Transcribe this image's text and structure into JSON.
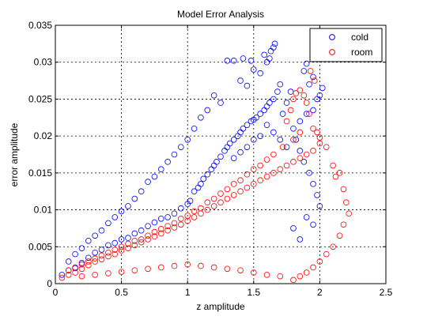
{
  "chart_data": {
    "type": "scatter",
    "title": "Model Error Analysis",
    "xlabel": "z amplitude",
    "ylabel": "error amplitude",
    "xlim": [
      0,
      2.5
    ],
    "ylim": [
      0,
      0.035
    ],
    "xticks": [
      0,
      0.5,
      1,
      1.5,
      2,
      2.5
    ],
    "xtick_labels": [
      "0",
      "0.5",
      "1",
      "1.5",
      "2",
      "2.5"
    ],
    "yticks": [
      0,
      0.005,
      0.01,
      0.015,
      0.02,
      0.025,
      0.03,
      0.035
    ],
    "ytick_labels": [
      "0",
      "0.005",
      "0.01",
      "0.015",
      "0.02",
      "0.025",
      "0.03",
      "0.035"
    ],
    "grid": true,
    "legend_position": "top-right",
    "marker": "open-circle",
    "series": [
      {
        "name": "cold",
        "color": "#0000ff",
        "points": [
          [
            0.05,
            0.0012
          ],
          [
            0.1,
            0.0018
          ],
          [
            0.15,
            0.0021
          ],
          [
            0.2,
            0.0028
          ],
          [
            0.25,
            0.0035
          ],
          [
            0.3,
            0.0042
          ],
          [
            0.35,
            0.0046
          ],
          [
            0.4,
            0.0052
          ],
          [
            0.45,
            0.0055
          ],
          [
            0.5,
            0.006
          ],
          [
            0.55,
            0.0062
          ],
          [
            0.6,
            0.0068
          ],
          [
            0.65,
            0.0072
          ],
          [
            0.7,
            0.0078
          ],
          [
            0.75,
            0.0083
          ],
          [
            0.8,
            0.0088
          ],
          [
            0.85,
            0.009
          ],
          [
            0.9,
            0.0095
          ],
          [
            0.95,
            0.0102
          ],
          [
            1.0,
            0.0108
          ],
          [
            1.02,
            0.0112
          ],
          [
            1.05,
            0.0125
          ],
          [
            1.08,
            0.013
          ],
          [
            1.1,
            0.0135
          ],
          [
            1.12,
            0.0142
          ],
          [
            1.15,
            0.0148
          ],
          [
            1.18,
            0.0155
          ],
          [
            1.2,
            0.016
          ],
          [
            1.22,
            0.0165
          ],
          [
            1.25,
            0.0172
          ],
          [
            1.28,
            0.018
          ],
          [
            1.3,
            0.0185
          ],
          [
            1.32,
            0.019
          ],
          [
            1.35,
            0.0195
          ],
          [
            1.38,
            0.02
          ],
          [
            1.4,
            0.0205
          ],
          [
            1.42,
            0.021
          ],
          [
            1.45,
            0.0215
          ],
          [
            1.48,
            0.022
          ],
          [
            1.5,
            0.0222
          ],
          [
            1.52,
            0.0225
          ],
          [
            1.55,
            0.023
          ],
          [
            1.58,
            0.0235
          ],
          [
            1.6,
            0.024
          ],
          [
            1.62,
            0.0245
          ],
          [
            1.65,
            0.025
          ],
          [
            1.68,
            0.026
          ],
          [
            1.7,
            0.027
          ],
          [
            1.4,
            0.0275
          ],
          [
            1.45,
            0.0268
          ],
          [
            1.5,
            0.029
          ],
          [
            1.55,
            0.0285
          ],
          [
            1.6,
            0.03
          ],
          [
            1.62,
            0.0305
          ],
          [
            1.65,
            0.032
          ],
          [
            1.66,
            0.0325
          ],
          [
            1.3,
            0.0302
          ],
          [
            1.35,
            0.0302
          ],
          [
            1.42,
            0.0305
          ],
          [
            1.48,
            0.0302
          ],
          [
            1.58,
            0.031
          ],
          [
            1.63,
            0.0315
          ],
          [
            1.2,
            0.0255
          ],
          [
            1.25,
            0.0245
          ],
          [
            1.15,
            0.0235
          ],
          [
            1.1,
            0.0225
          ],
          [
            1.05,
            0.021
          ],
          [
            1.0,
            0.0195
          ],
          [
            0.95,
            0.0185
          ],
          [
            0.9,
            0.0175
          ],
          [
            0.85,
            0.0165
          ],
          [
            0.8,
            0.0155
          ],
          [
            0.75,
            0.0145
          ],
          [
            0.7,
            0.0138
          ],
          [
            0.65,
            0.0125
          ],
          [
            0.6,
            0.0115
          ],
          [
            0.55,
            0.0105
          ],
          [
            0.5,
            0.0098
          ],
          [
            0.45,
            0.009
          ],
          [
            0.4,
            0.0082
          ],
          [
            0.35,
            0.0072
          ],
          [
            0.3,
            0.0065
          ],
          [
            0.25,
            0.0058
          ],
          [
            0.2,
            0.0048
          ],
          [
            0.15,
            0.004
          ],
          [
            0.1,
            0.003
          ],
          [
            1.85,
            0.022
          ],
          [
            1.9,
            0.023
          ],
          [
            1.95,
            0.0235
          ],
          [
            1.98,
            0.025
          ],
          [
            2.0,
            0.0255
          ],
          [
            2.02,
            0.0265
          ],
          [
            1.92,
            0.027
          ],
          [
            1.95,
            0.028
          ],
          [
            1.9,
            0.0298
          ],
          [
            1.88,
            0.0288
          ],
          [
            1.78,
            0.026
          ],
          [
            1.75,
            0.0245
          ],
          [
            1.72,
            0.023
          ],
          [
            1.8,
            0.021
          ],
          [
            1.82,
            0.0195
          ],
          [
            1.85,
            0.018
          ],
          [
            1.88,
            0.0165
          ],
          [
            1.92,
            0.015
          ],
          [
            1.95,
            0.0135
          ],
          [
            1.98,
            0.012
          ],
          [
            2.0,
            0.0105
          ],
          [
            1.9,
            0.009
          ],
          [
            1.95,
            0.008
          ],
          [
            1.8,
            0.0075
          ],
          [
            1.85,
            0.006
          ],
          [
            1.75,
            0.0185
          ],
          [
            1.7,
            0.0195
          ],
          [
            1.65,
            0.0205
          ],
          [
            1.6,
            0.0215
          ],
          [
            1.55,
            0.02
          ],
          [
            1.5,
            0.0195
          ],
          [
            1.45,
            0.0185
          ],
          [
            1.4,
            0.0178
          ],
          [
            1.35,
            0.017
          ]
        ]
      },
      {
        "name": "room",
        "color": "#ff0000",
        "points": [
          [
            0.05,
            0.0008
          ],
          [
            0.1,
            0.0012
          ],
          [
            0.15,
            0.0015
          ],
          [
            0.2,
            0.002
          ],
          [
            0.25,
            0.0025
          ],
          [
            0.3,
            0.003
          ],
          [
            0.35,
            0.0033
          ],
          [
            0.4,
            0.0037
          ],
          [
            0.45,
            0.004
          ],
          [
            0.5,
            0.0045
          ],
          [
            0.55,
            0.0048
          ],
          [
            0.6,
            0.0052
          ],
          [
            0.65,
            0.0056
          ],
          [
            0.7,
            0.006
          ],
          [
            0.75,
            0.0064
          ],
          [
            0.8,
            0.0068
          ],
          [
            0.85,
            0.0072
          ],
          [
            0.9,
            0.0076
          ],
          [
            0.95,
            0.008
          ],
          [
            1.0,
            0.0085
          ],
          [
            1.05,
            0.009
          ],
          [
            1.1,
            0.0095
          ],
          [
            1.15,
            0.01
          ],
          [
            1.2,
            0.0105
          ],
          [
            1.25,
            0.011
          ],
          [
            1.3,
            0.0115
          ],
          [
            1.35,
            0.012
          ],
          [
            1.4,
            0.0125
          ],
          [
            1.45,
            0.013
          ],
          [
            1.5,
            0.0135
          ],
          [
            1.55,
            0.014
          ],
          [
            1.6,
            0.0145
          ],
          [
            1.65,
            0.015
          ],
          [
            1.7,
            0.0155
          ],
          [
            1.75,
            0.016
          ],
          [
            1.8,
            0.0165
          ],
          [
            1.85,
            0.017
          ],
          [
            1.9,
            0.0175
          ],
          [
            1.95,
            0.018
          ],
          [
            2.0,
            0.019
          ],
          [
            2.05,
            0.0185
          ],
          [
            2.1,
            0.016
          ],
          [
            2.12,
            0.0145
          ],
          [
            2.15,
            0.015
          ],
          [
            2.18,
            0.0128
          ],
          [
            2.2,
            0.011
          ],
          [
            2.22,
            0.0095
          ],
          [
            2.18,
            0.008
          ],
          [
            2.15,
            0.0065
          ],
          [
            2.1,
            0.005
          ],
          [
            2.05,
            0.004
          ],
          [
            2.0,
            0.003
          ],
          [
            1.95,
            0.0022
          ],
          [
            1.9,
            0.0015
          ],
          [
            1.85,
            0.001
          ],
          [
            1.8,
            0.0005
          ],
          [
            1.7,
            0.001
          ],
          [
            1.6,
            0.0012
          ],
          [
            1.5,
            0.0015
          ],
          [
            1.4,
            0.0018
          ],
          [
            1.3,
            0.002
          ],
          [
            1.2,
            0.0022
          ],
          [
            1.1,
            0.0024
          ],
          [
            1.0,
            0.0026
          ],
          [
            0.9,
            0.0024
          ],
          [
            0.8,
            0.0022
          ],
          [
            0.7,
            0.002
          ],
          [
            0.6,
            0.0018
          ],
          [
            0.5,
            0.0016
          ],
          [
            0.4,
            0.0014
          ],
          [
            0.3,
            0.0012
          ],
          [
            0.2,
            0.001
          ],
          [
            1.75,
            0.022
          ],
          [
            1.78,
            0.0235
          ],
          [
            1.8,
            0.025
          ],
          [
            1.82,
            0.0258
          ],
          [
            1.85,
            0.0262
          ],
          [
            1.88,
            0.0255
          ],
          [
            1.9,
            0.0245
          ],
          [
            1.92,
            0.023
          ],
          [
            1.95,
            0.021
          ],
          [
            1.98,
            0.0205
          ],
          [
            2.0,
            0.0198
          ],
          [
            1.85,
            0.0205
          ],
          [
            1.8,
            0.0195
          ],
          [
            1.72,
            0.0185
          ],
          [
            1.65,
            0.0175
          ],
          [
            1.6,
            0.0168
          ],
          [
            1.55,
            0.016
          ],
          [
            1.5,
            0.0155
          ],
          [
            1.45,
            0.0148
          ],
          [
            1.4,
            0.014
          ],
          [
            1.35,
            0.0135
          ],
          [
            1.3,
            0.0128
          ],
          [
            1.25,
            0.0122
          ],
          [
            1.2,
            0.0115
          ],
          [
            1.15,
            0.011
          ],
          [
            1.1,
            0.0102
          ],
          [
            1.05,
            0.0098
          ],
          [
            1.0,
            0.0092
          ],
          [
            0.95,
            0.0088
          ],
          [
            0.9,
            0.0082
          ],
          [
            0.85,
            0.0078
          ],
          [
            0.8,
            0.0074
          ],
          [
            0.75,
            0.007
          ],
          [
            0.7,
            0.0065
          ],
          [
            0.65,
            0.006
          ],
          [
            0.6,
            0.0058
          ],
          [
            0.55,
            0.0054
          ],
          [
            0.5,
            0.005
          ],
          [
            0.45,
            0.0046
          ],
          [
            0.4,
            0.0042
          ],
          [
            0.35,
            0.0038
          ],
          [
            0.3,
            0.0034
          ],
          [
            0.25,
            0.003
          ],
          [
            0.2,
            0.0026
          ],
          [
            0.15,
            0.0022
          ],
          [
            0.1,
            0.0018
          ],
          [
            1.93,
            0.0288
          ],
          [
            1.96,
            0.0275
          ]
        ]
      }
    ]
  }
}
